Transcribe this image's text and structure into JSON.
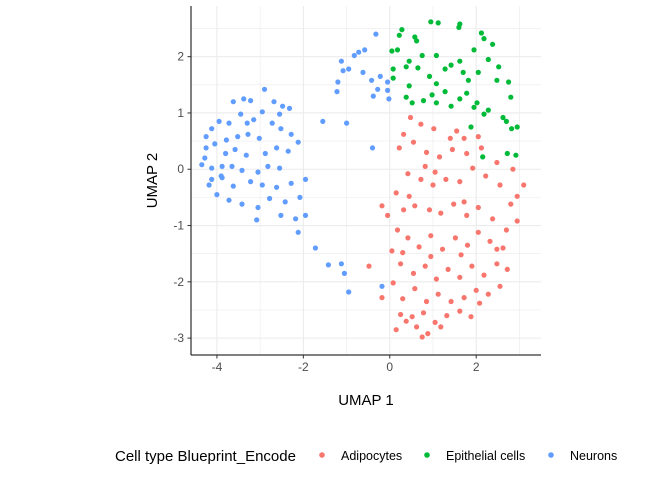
{
  "chart_data": {
    "type": "scatter",
    "title": "",
    "xlabel": "UMAP 1",
    "ylabel": "UMAP 2",
    "xlim": [
      -4.6,
      3.5
    ],
    "ylim": [
      -3.3,
      2.9
    ],
    "xticks": [
      -4,
      -2,
      0,
      2
    ],
    "yticks": [
      -3,
      -2,
      -1,
      0,
      1,
      2
    ],
    "grid": true,
    "legend_title": "Cell type Blueprint_Encode",
    "legend_position": "bottom",
    "series": [
      {
        "name": "Adipocytes",
        "color": "#F8766D",
        "points": [
          [
            1.55,
            0.68
          ],
          [
            2.05,
            0.58
          ],
          [
            0.48,
            0.92
          ],
          [
            0.72,
            0.8
          ],
          [
            1.02,
            0.72
          ],
          [
            1.4,
            0.55
          ],
          [
            0.32,
            0.62
          ],
          [
            0.22,
            0.38
          ],
          [
            0.55,
            0.48
          ],
          [
            0.85,
            0.3
          ],
          [
            1.15,
            0.22
          ],
          [
            1.45,
            0.35
          ],
          [
            1.78,
            0.28
          ],
          [
            2.12,
            0.38
          ],
          [
            2.48,
            0.12
          ],
          [
            2.85,
            0.0
          ],
          [
            3.1,
            -0.28
          ],
          [
            2.8,
            -0.62
          ],
          [
            2.55,
            -0.28
          ],
          [
            2.22,
            -0.12
          ],
          [
            1.92,
            0.02
          ],
          [
            1.62,
            -0.22
          ],
          [
            1.3,
            -0.18
          ],
          [
            1.0,
            -0.28
          ],
          [
            0.72,
            -0.18
          ],
          [
            0.42,
            -0.08
          ],
          [
            0.15,
            -0.42
          ],
          [
            -0.05,
            -0.82
          ],
          [
            -0.18,
            -0.65
          ],
          [
            0.32,
            -0.72
          ],
          [
            0.58,
            -0.65
          ],
          [
            0.92,
            -0.72
          ],
          [
            1.18,
            -0.78
          ],
          [
            1.48,
            -0.62
          ],
          [
            1.78,
            -0.82
          ],
          [
            2.05,
            -0.68
          ],
          [
            2.38,
            -0.88
          ],
          [
            2.7,
            -1.08
          ],
          [
            2.95,
            -0.92
          ],
          [
            2.62,
            -1.4
          ],
          [
            2.32,
            -1.28
          ],
          [
            2.05,
            -1.12
          ],
          [
            1.8,
            -1.35
          ],
          [
            1.52,
            -1.22
          ],
          [
            1.22,
            -1.42
          ],
          [
            0.95,
            -1.18
          ],
          [
            0.68,
            -1.38
          ],
          [
            0.42,
            -1.22
          ],
          [
            0.18,
            -1.08
          ],
          [
            0.05,
            -1.45
          ],
          [
            0.25,
            -1.68
          ],
          [
            0.55,
            -1.85
          ],
          [
            0.82,
            -1.72
          ],
          [
            1.08,
            -1.95
          ],
          [
            1.35,
            -1.78
          ],
          [
            1.62,
            -1.92
          ],
          [
            1.9,
            -1.72
          ],
          [
            2.18,
            -1.88
          ],
          [
            2.48,
            -1.68
          ],
          [
            2.72,
            -1.78
          ],
          [
            2.55,
            -2.08
          ],
          [
            2.28,
            -2.22
          ],
          [
            2.0,
            -2.15
          ],
          [
            1.72,
            -2.28
          ],
          [
            1.42,
            -2.35
          ],
          [
            1.12,
            -2.22
          ],
          [
            0.85,
            -2.35
          ],
          [
            0.58,
            -2.12
          ],
          [
            0.3,
            -2.3
          ],
          [
            0.08,
            -2.02
          ],
          [
            -0.48,
            -1.72
          ],
          [
            -0.18,
            -2.28
          ],
          [
            0.25,
            -2.58
          ],
          [
            0.52,
            -2.62
          ],
          [
            0.78,
            -2.55
          ],
          [
            1.05,
            -2.72
          ],
          [
            1.32,
            -2.6
          ],
          [
            1.62,
            -2.52
          ],
          [
            1.88,
            -2.62
          ],
          [
            2.08,
            -2.38
          ],
          [
            0.38,
            -2.7
          ],
          [
            0.62,
            -2.8
          ],
          [
            0.88,
            -2.92
          ],
          [
            1.18,
            -2.8
          ],
          [
            0.75,
            -2.98
          ],
          [
            0.15,
            -2.85
          ],
          [
            0.45,
            -0.48
          ],
          [
            1.72,
            -0.58
          ],
          [
            2.95,
            -0.48
          ],
          [
            0.95,
            -1.55
          ],
          [
            1.65,
            -1.52
          ],
          [
            0.3,
            -1.48
          ],
          [
            2.48,
            -1.42
          ],
          [
            1.05,
            -0.05
          ],
          [
            0.82,
            0.05
          ],
          [
            1.72,
            0.55
          ]
        ]
      },
      {
        "name": "Epithelial cells",
        "color": "#00BA38",
        "points": [
          [
            0.95,
            2.62
          ],
          [
            1.12,
            2.6
          ],
          [
            1.62,
            2.58
          ],
          [
            1.6,
            2.52
          ],
          [
            0.28,
            2.48
          ],
          [
            0.22,
            2.38
          ],
          [
            0.62,
            2.28
          ],
          [
            0.58,
            2.35
          ],
          [
            2.12,
            2.42
          ],
          [
            2.18,
            2.32
          ],
          [
            2.38,
            2.22
          ],
          [
            1.95,
            2.12
          ],
          [
            1.08,
            2.02
          ],
          [
            0.75,
            2.02
          ],
          [
            0.18,
            2.12
          ],
          [
            0.05,
            2.1
          ],
          [
            2.28,
            1.95
          ],
          [
            2.52,
            1.82
          ],
          [
            2.05,
            1.72
          ],
          [
            2.48,
            1.58
          ],
          [
            1.7,
            1.72
          ],
          [
            1.28,
            1.78
          ],
          [
            0.65,
            1.8
          ],
          [
            0.92,
            1.65
          ],
          [
            0.45,
            1.48
          ],
          [
            0.38,
            1.28
          ],
          [
            0.08,
            1.78
          ],
          [
            0.08,
            1.62
          ],
          [
            0.38,
            1.82
          ],
          [
            1.62,
            1.92
          ],
          [
            2.75,
            1.55
          ],
          [
            2.8,
            1.28
          ],
          [
            1.08,
            1.52
          ],
          [
            1.82,
            1.58
          ],
          [
            1.28,
            1.38
          ],
          [
            0.98,
            1.32
          ],
          [
            0.52,
            1.18
          ],
          [
            1.62,
            1.25
          ],
          [
            2.02,
            1.18
          ],
          [
            2.28,
            1.05
          ],
          [
            2.62,
            0.92
          ],
          [
            2.7,
            0.85
          ],
          [
            2.95,
            0.75
          ],
          [
            2.82,
            0.72
          ],
          [
            1.88,
            0.75
          ],
          [
            2.18,
            0.98
          ],
          [
            1.42,
            1.12
          ],
          [
            1.08,
            1.18
          ],
          [
            0.78,
            1.22
          ],
          [
            1.95,
            1.1
          ],
          [
            2.72,
            0.28
          ],
          [
            2.92,
            0.25
          ],
          [
            2.15,
            0.22
          ],
          [
            1.42,
            1.85
          ],
          [
            0.45,
            1.92
          ],
          [
            1.78,
            1.35
          ]
        ]
      },
      {
        "name": "Neurons",
        "color": "#619CFF",
        "points": [
          [
            -0.32,
            2.4
          ],
          [
            -0.58,
            2.12
          ],
          [
            -0.72,
            2.08
          ],
          [
            -0.82,
            2.02
          ],
          [
            -0.95,
            1.78
          ],
          [
            -1.12,
            1.92
          ],
          [
            -1.08,
            1.75
          ],
          [
            -0.62,
            1.72
          ],
          [
            -0.42,
            1.58
          ],
          [
            -0.22,
            1.65
          ],
          [
            -0.05,
            1.55
          ],
          [
            -0.28,
            1.42
          ],
          [
            -0.05,
            1.4
          ],
          [
            -1.2,
            1.55
          ],
          [
            -1.22,
            1.38
          ],
          [
            -0.38,
            1.3
          ],
          [
            -0.02,
            1.25
          ],
          [
            -1.55,
            0.85
          ],
          [
            -1.0,
            0.82
          ],
          [
            -0.4,
            0.38
          ],
          [
            -2.9,
            1.42
          ],
          [
            -3.22,
            1.22
          ],
          [
            -3.38,
            1.25
          ],
          [
            -3.62,
            1.2
          ],
          [
            -2.68,
            1.2
          ],
          [
            -2.48,
            1.12
          ],
          [
            -2.32,
            1.08
          ],
          [
            -2.55,
            0.98
          ],
          [
            -2.95,
            1.02
          ],
          [
            -3.15,
            0.88
          ],
          [
            -3.45,
            0.98
          ],
          [
            -3.72,
            0.82
          ],
          [
            -3.95,
            0.85
          ],
          [
            -4.12,
            0.72
          ],
          [
            -4.25,
            0.58
          ],
          [
            -2.28,
            0.62
          ],
          [
            -2.52,
            0.72
          ],
          [
            -2.72,
            0.82
          ],
          [
            -3.02,
            0.55
          ],
          [
            -3.28,
            0.62
          ],
          [
            -3.52,
            0.58
          ],
          [
            -3.78,
            0.52
          ],
          [
            -4.05,
            0.45
          ],
          [
            -4.25,
            0.38
          ],
          [
            -4.28,
            0.2
          ],
          [
            -3.8,
            0.28
          ],
          [
            -3.58,
            0.35
          ],
          [
            -3.32,
            0.25
          ],
          [
            -2.88,
            0.28
          ],
          [
            -2.62,
            0.38
          ],
          [
            -2.35,
            0.32
          ],
          [
            -2.12,
            0.48
          ],
          [
            -2.82,
            0.05
          ],
          [
            -2.55,
            0.02
          ],
          [
            -3.05,
            -0.05
          ],
          [
            -3.42,
            -0.02
          ],
          [
            -3.65,
            0.05
          ],
          [
            -3.88,
            0.05
          ],
          [
            -4.12,
            0.02
          ],
          [
            -4.35,
            0.08
          ],
          [
            -4.12,
            -0.18
          ],
          [
            -3.88,
            -0.15
          ],
          [
            -3.62,
            -0.3
          ],
          [
            -3.22,
            -0.22
          ],
          [
            -2.95,
            -0.28
          ],
          [
            -2.62,
            -0.32
          ],
          [
            -2.28,
            -0.25
          ],
          [
            -1.95,
            -0.18
          ],
          [
            -2.08,
            -0.5
          ],
          [
            -2.42,
            -0.58
          ],
          [
            -2.78,
            -0.52
          ],
          [
            -3.05,
            -0.68
          ],
          [
            -3.42,
            -0.62
          ],
          [
            -3.72,
            -0.55
          ],
          [
            -4.0,
            -0.45
          ],
          [
            -4.18,
            -0.28
          ],
          [
            -2.52,
            -0.82
          ],
          [
            -2.18,
            -0.88
          ],
          [
            -3.08,
            -0.9
          ],
          [
            -1.95,
            -0.82
          ],
          [
            -2.12,
            -1.12
          ],
          [
            -1.72,
            -1.4
          ],
          [
            -1.42,
            -1.7
          ],
          [
            -1.12,
            -1.68
          ],
          [
            -1.05,
            -1.85
          ],
          [
            -0.95,
            -2.18
          ],
          [
            -0.18,
            -2.08
          ],
          [
            -3.9,
            -0.12
          ],
          [
            -3.3,
            0.82
          ]
        ]
      }
    ]
  }
}
